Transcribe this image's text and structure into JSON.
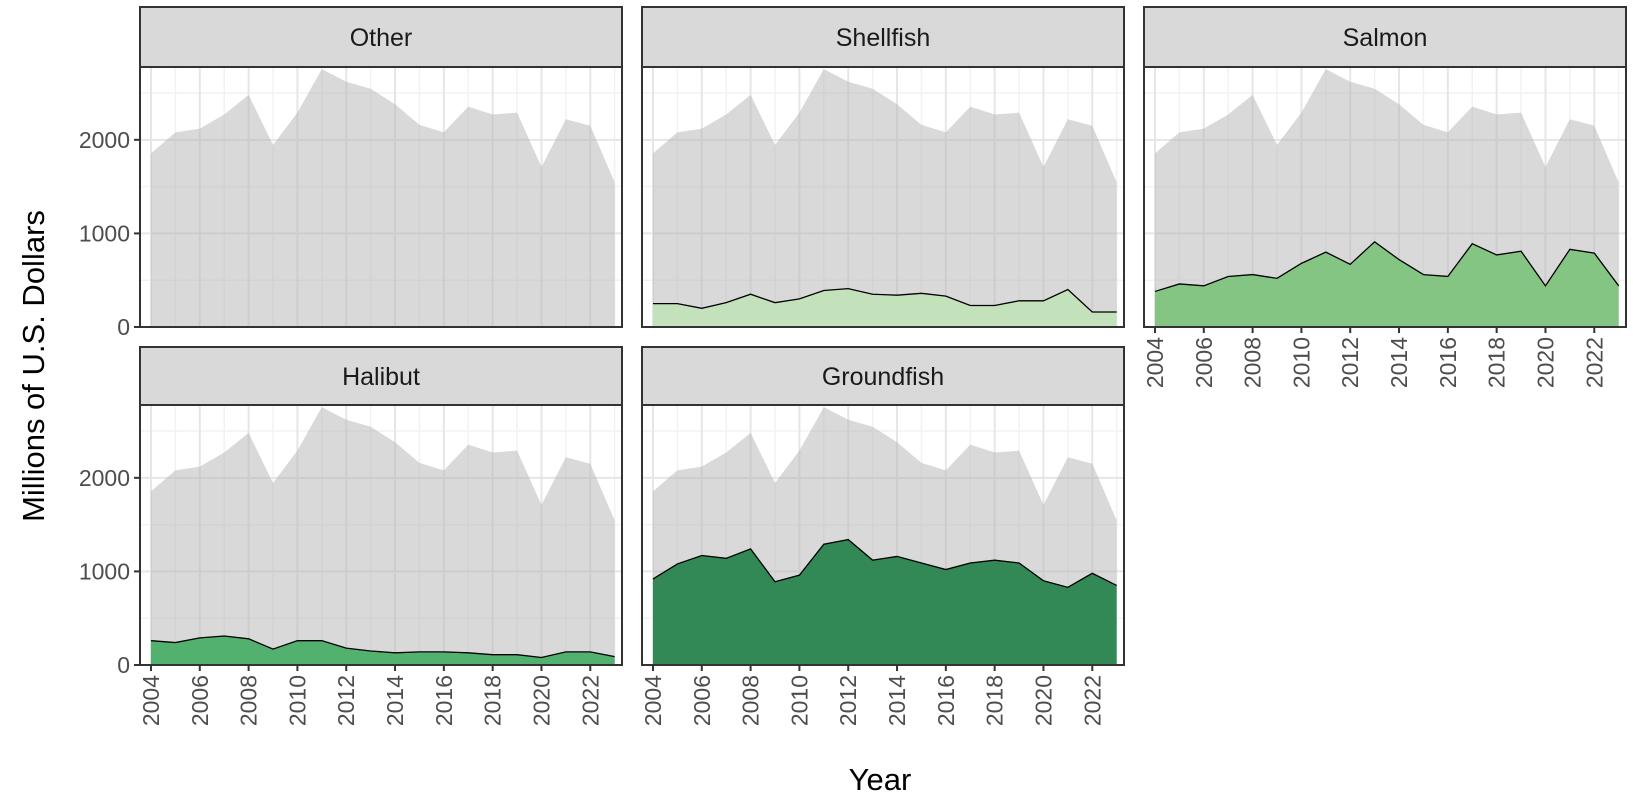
{
  "chart_data": {
    "type": "area",
    "xlabel": "Year",
    "ylabel": "Millions of U.S. Dollars",
    "x": [
      2004,
      2005,
      2006,
      2007,
      2008,
      2009,
      2010,
      2011,
      2012,
      2013,
      2014,
      2015,
      2016,
      2017,
      2018,
      2019,
      2020,
      2021,
      2022,
      2023
    ],
    "background_color": "#b3b3b3",
    "background_values": [
      1855,
      2080,
      2120,
      2270,
      2480,
      1945,
      2290,
      2755,
      2620,
      2545,
      2380,
      2160,
      2080,
      2355,
      2270,
      2290,
      1710,
      2220,
      2150,
      1545
    ],
    "series": [
      {
        "name": "Other"
      },
      {
        "name": "Shellfish",
        "color": "#c2e3b9",
        "values": [
          250,
          250,
          200,
          260,
          350,
          260,
          300,
          390,
          410,
          350,
          340,
          360,
          330,
          230,
          230,
          280,
          280,
          400,
          160,
          160
        ]
      },
      {
        "name": "Salmon",
        "color": "#80c47f",
        "values": [
          380,
          460,
          440,
          540,
          560,
          520,
          680,
          800,
          670,
          910,
          720,
          560,
          540,
          890,
          770,
          810,
          440,
          830,
          790,
          440
        ]
      },
      {
        "name": "Halibut",
        "color": "#4caf6a",
        "values": [
          260,
          240,
          290,
          310,
          280,
          170,
          260,
          260,
          180,
          150,
          130,
          140,
          140,
          130,
          110,
          110,
          80,
          140,
          140,
          90
        ]
      },
      {
        "name": "Groundfish",
        "color": "#2a854e",
        "values": [
          920,
          1080,
          1170,
          1140,
          1240,
          890,
          960,
          1290,
          1340,
          1120,
          1160,
          1090,
          1020,
          1090,
          1120,
          1090,
          900,
          830,
          980,
          850
        ]
      }
    ],
    "xlim": [
      2003.55,
      2023.3
    ],
    "ylim": [
      0,
      2778
    ],
    "xticks": [
      2004,
      2006,
      2008,
      2010,
      2012,
      2014,
      2016,
      2018,
      2020,
      2022
    ],
    "yticks": [
      0,
      1000,
      2000
    ],
    "grid": true
  }
}
